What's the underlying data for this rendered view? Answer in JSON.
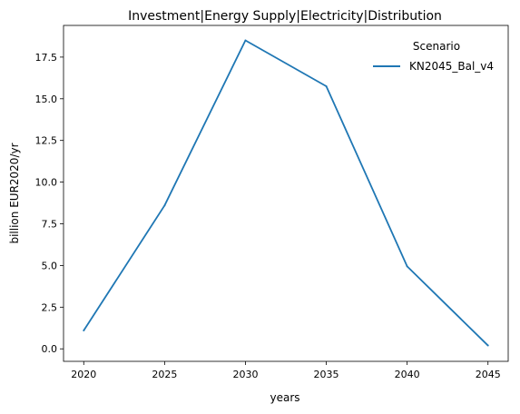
{
  "chart_data": {
    "type": "line",
    "title": "Investment|Energy Supply|Electricity|Distribution",
    "xlabel": "years",
    "ylabel": "billion EUR2020/yr",
    "x": [
      2020,
      2025,
      2030,
      2035,
      2040,
      2045
    ],
    "x_ticks": [
      "2020",
      "2025",
      "2030",
      "2035",
      "2040",
      "2045"
    ],
    "y_ticks": [
      "0.0",
      "2.5",
      "5.0",
      "7.5",
      "10.0",
      "12.5",
      "15.0",
      "17.5"
    ],
    "xlim": [
      2018.75,
      2046.25
    ],
    "ylim": [
      -0.75,
      19.4
    ],
    "grid": false,
    "legend": {
      "title": "Scenario",
      "placement": "top-right"
    },
    "series": [
      {
        "name": "KN2045_Bal_v4",
        "color": "#1f77b4",
        "values": [
          1.1,
          8.6,
          18.5,
          15.75,
          4.95,
          0.2
        ]
      }
    ]
  }
}
